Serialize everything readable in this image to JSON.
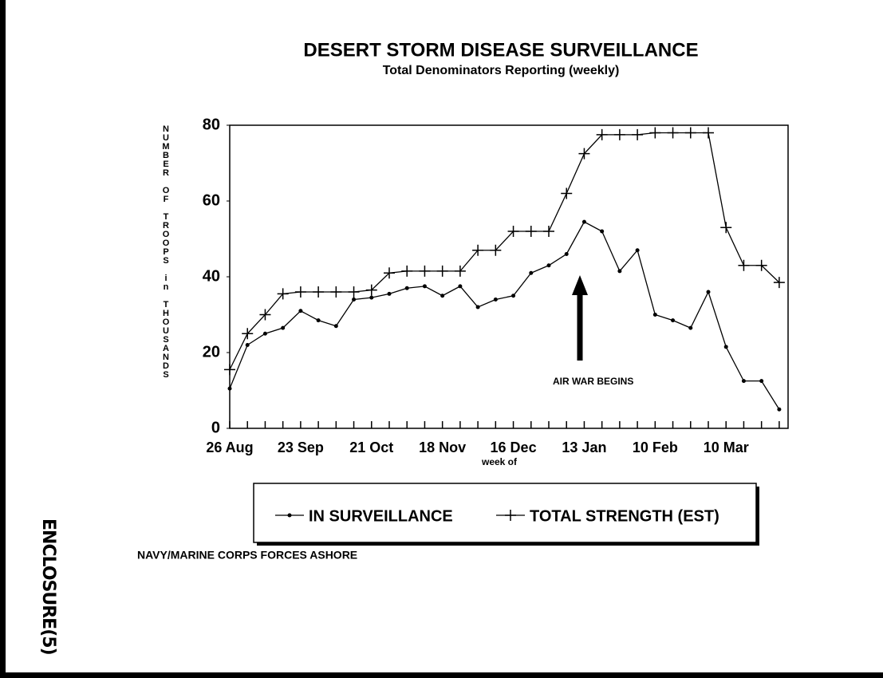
{
  "chart_data": {
    "type": "line",
    "title": "DESERT STORM DISEASE SURVEILLANCE",
    "subtitle": "Total Denominators Reporting (weekly)",
    "y_label": "NUMBER OF TROOPS in THOUSANDS",
    "x_label": "week of",
    "categories": [
      "26 Aug",
      null,
      null,
      null,
      "23 Sep",
      null,
      null,
      null,
      "21 Oct",
      null,
      null,
      null,
      "18 Nov",
      null,
      null,
      null,
      "16 Dec",
      null,
      null,
      null,
      "13 Jan",
      null,
      null,
      null,
      "10 Feb",
      null,
      null,
      null,
      "10 Mar",
      null,
      null,
      null
    ],
    "series": [
      {
        "name": "IN SURVEILLANCE",
        "color": "#000000",
        "marker": "dot",
        "values": [
          10.5,
          22,
          25,
          26.5,
          31,
          28.5,
          27,
          34,
          34.5,
          35.5,
          37,
          37.5,
          35,
          37.5,
          32,
          34,
          35,
          41,
          43,
          46,
          54.5,
          52,
          41.5,
          47,
          30,
          28.5,
          26.5,
          36,
          21.5,
          12.5,
          12.5,
          5
        ]
      },
      {
        "name": "TOTAL STRENGTH (EST)",
        "color": "#000000",
        "marker": "plus",
        "values": [
          15.5,
          25,
          30,
          35.5,
          36,
          36,
          36,
          36,
          36.5,
          41,
          41.5,
          41.5,
          41.5,
          41.5,
          47,
          47,
          52,
          52,
          52,
          62,
          72.5,
          77.5,
          77.5,
          77.5,
          78,
          78,
          78,
          78,
          53,
          43,
          43,
          38.5
        ]
      }
    ],
    "ylim": [
      0,
      80
    ],
    "yticks": [
      0,
      20,
      40,
      60,
      80
    ],
    "grid": false,
    "legend": "bottom",
    "annotation": "AIR WAR BEGINS",
    "footer": "NAVY/MARINE CORPS FORCES ASHORE",
    "stamp": "ENCLOSURE(5)"
  }
}
